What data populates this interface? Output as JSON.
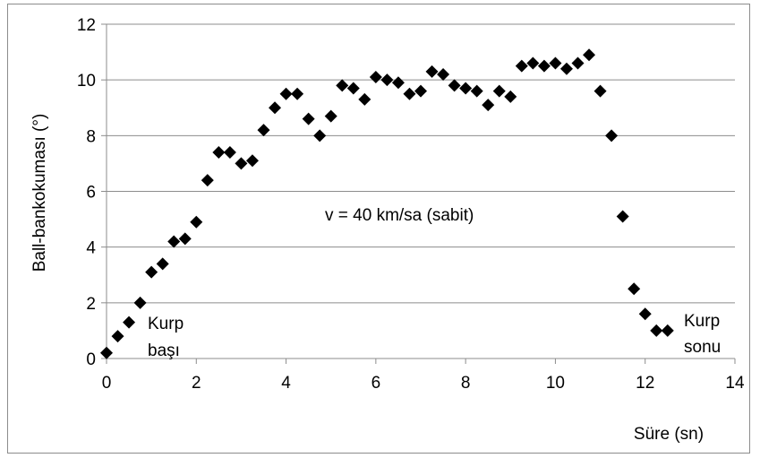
{
  "chart_data": {
    "type": "scatter",
    "title": "",
    "xlabel": "Süre (sn)",
    "ylabel": "Ball-bankokuması (°)",
    "xlim": [
      0,
      14
    ],
    "ylim": [
      0,
      12
    ],
    "x_ticks": [
      0,
      2,
      4,
      6,
      8,
      10,
      12,
      14
    ],
    "y_ticks": [
      0,
      2,
      4,
      6,
      8,
      10,
      12
    ],
    "grid": "horizontal",
    "legend": "none",
    "marker": "diamond",
    "marker_color": "#000000",
    "annotations": {
      "speed": "v = 40 km/sa (sabit)",
      "start_line1": "Kurp",
      "start_line2": "başı",
      "end_line1": "Kurp",
      "end_line2": "sonu"
    },
    "x": [
      0,
      0.25,
      0.5,
      0.75,
      1.0,
      1.25,
      1.5,
      1.75,
      2.0,
      2.25,
      2.5,
      2.75,
      3.0,
      3.25,
      3.5,
      3.75,
      4.0,
      4.25,
      4.5,
      4.75,
      5.0,
      5.25,
      5.5,
      5.75,
      6.0,
      6.25,
      6.5,
      6.75,
      7.0,
      7.25,
      7.5,
      7.75,
      8.0,
      8.25,
      8.5,
      8.75,
      9.0,
      9.25,
      9.5,
      9.75,
      10.0,
      10.25,
      10.5,
      10.75,
      11.0,
      11.25,
      11.5,
      11.75,
      12.0,
      12.25,
      12.5
    ],
    "y": [
      0.2,
      0.8,
      1.3,
      2.0,
      3.1,
      3.4,
      4.2,
      4.3,
      4.9,
      6.4,
      7.4,
      7.4,
      7.0,
      7.1,
      8.2,
      9.0,
      9.5,
      9.5,
      8.6,
      8.0,
      8.7,
      9.8,
      9.7,
      9.3,
      10.1,
      10.0,
      9.9,
      9.5,
      9.6,
      10.3,
      10.2,
      9.8,
      9.7,
      9.6,
      9.1,
      9.6,
      9.4,
      10.5,
      10.6,
      10.5,
      10.6,
      10.4,
      10.6,
      10.9,
      9.6,
      8.0,
      5.1,
      2.5,
      1.6,
      1.0,
      1.0
    ]
  }
}
